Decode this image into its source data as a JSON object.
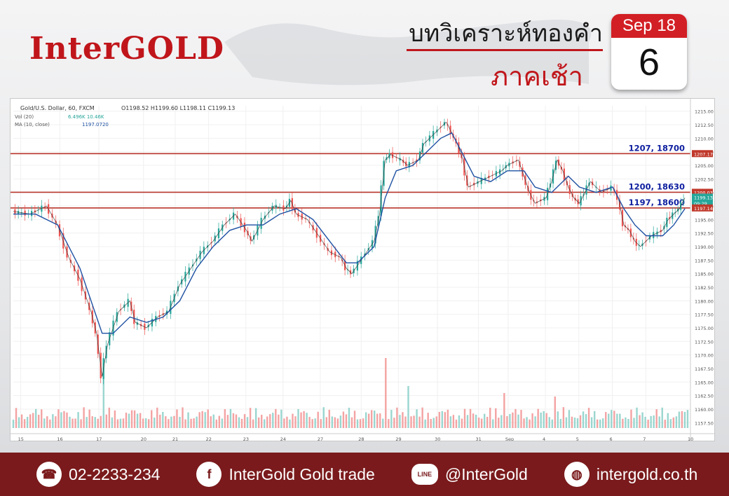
{
  "header": {
    "logo": "InterGOLD",
    "title_main": "บทวิเคราะห์ทองคำ",
    "title_sub": "ภาคเช้า",
    "calendar": {
      "month_year": "Sep 18",
      "day": "6"
    }
  },
  "chart_data": {
    "type": "line",
    "legend_lines": {
      "symbol": "Gold/U.S. Dollar, 60, FXCM",
      "ohlc": "O1198.52  H1199.60  L1198.11  C1199.13",
      "vol": "Vol (20)",
      "vol_values": "6.496K  10.46K",
      "ma": "MA (10, close)",
      "ma_value": "1197.0720"
    },
    "x_ticks": [
      "15",
      "16",
      "17",
      "20",
      "21",
      "22",
      "23",
      "24",
      "27",
      "28",
      "29",
      "30",
      "31",
      "Sep",
      "4",
      "5",
      "6",
      "7",
      "10"
    ],
    "y_ticks": [
      "1215.00",
      "1212.50",
      "1210.00",
      "1207.50",
      "1205.00",
      "1202.50",
      "1200.00",
      "1197.50",
      "1195.00",
      "1192.50",
      "1190.00",
      "1187.50",
      "1185.00",
      "1182.50",
      "1180.00",
      "1177.50",
      "1175.00",
      "1172.50",
      "1170.00",
      "1167.50",
      "1165.00",
      "1162.50",
      "1160.00",
      "1157.50"
    ],
    "ylim": [
      1156.5,
      1216
    ],
    "price_tags": [
      {
        "label": "1207.17",
        "value": 1207.17,
        "color": "#c0392b"
      },
      {
        "label": "1200.03",
        "value": 1200.03,
        "color": "#c0392b"
      },
      {
        "label": "1199.13",
        "value": 1199.13,
        "color": "#26a69a"
      },
      {
        "label": "09:29",
        "value": 1198.0,
        "color": "#26a69a"
      },
      {
        "label": "1197.14",
        "value": 1197.14,
        "color": "#c0392b"
      }
    ],
    "levels": [
      {
        "label": "1207, 18700",
        "value": 1207.17
      },
      {
        "label": "1200, 18630",
        "value": 1200.03
      },
      {
        "label": "1197, 18600",
        "value": 1197.14
      }
    ],
    "price_path": [
      [
        0,
        1196.5
      ],
      [
        3,
        1196
      ],
      [
        6,
        1197.5
      ],
      [
        8,
        1194
      ],
      [
        10,
        1188
      ],
      [
        12,
        1184
      ],
      [
        14,
        1178
      ],
      [
        15,
        1174
      ],
      [
        16,
        1166
      ],
      [
        17,
        1172
      ],
      [
        19,
        1178
      ],
      [
        21,
        1180
      ],
      [
        22,
        1176
      ],
      [
        24,
        1175
      ],
      [
        26,
        1177
      ],
      [
        28,
        1178
      ],
      [
        30,
        1183
      ],
      [
        32,
        1186
      ],
      [
        34,
        1189
      ],
      [
        36,
        1191
      ],
      [
        38,
        1194
      ],
      [
        40,
        1196
      ],
      [
        42,
        1193
      ],
      [
        43,
        1191
      ],
      [
        45,
        1195
      ],
      [
        47,
        1197.5
      ],
      [
        49,
        1197
      ],
      [
        50,
        1198.5
      ],
      [
        51,
        1196
      ],
      [
        53,
        1195
      ],
      [
        55,
        1192
      ],
      [
        57,
        1189
      ],
      [
        59,
        1188
      ],
      [
        60,
        1186
      ],
      [
        61,
        1185
      ],
      [
        63,
        1188
      ],
      [
        65,
        1191
      ],
      [
        66,
        1196
      ],
      [
        67,
        1206
      ],
      [
        68,
        1207
      ],
      [
        70,
        1206
      ],
      [
        71,
        1205
      ],
      [
        73,
        1206
      ],
      [
        74,
        1209
      ],
      [
        76,
        1211
      ],
      [
        78,
        1213
      ],
      [
        79,
        1211
      ],
      [
        80,
        1209
      ],
      [
        81,
        1206
      ],
      [
        82,
        1201
      ],
      [
        84,
        1202
      ],
      [
        86,
        1203
      ],
      [
        88,
        1204
      ],
      [
        89,
        1205
      ],
      [
        91,
        1206
      ],
      [
        92,
        1203
      ],
      [
        93,
        1200
      ],
      [
        94,
        1198
      ],
      [
        96,
        1199
      ],
      [
        97,
        1202
      ],
      [
        98,
        1206
      ],
      [
        99,
        1204
      ],
      [
        100,
        1201
      ],
      [
        101,
        1199
      ],
      [
        102,
        1198
      ],
      [
        103,
        1200
      ],
      [
        104,
        1202
      ],
      [
        106,
        1200
      ],
      [
        108,
        1201
      ],
      [
        109,
        1199
      ],
      [
        110,
        1194
      ],
      [
        111,
        1193
      ],
      [
        112,
        1191
      ],
      [
        113,
        1190
      ],
      [
        115,
        1192
      ],
      [
        117,
        1193
      ],
      [
        118,
        1195
      ],
      [
        119,
        1196
      ],
      [
        120,
        1197
      ],
      [
        121,
        1199
      ]
    ],
    "ma_path": [
      [
        0,
        1196
      ],
      [
        4,
        1196
      ],
      [
        8,
        1194
      ],
      [
        12,
        1186
      ],
      [
        16,
        1174
      ],
      [
        18,
        1174
      ],
      [
        21,
        1177
      ],
      [
        24,
        1176
      ],
      [
        27,
        1177
      ],
      [
        30,
        1180
      ],
      [
        33,
        1186
      ],
      [
        36,
        1190
      ],
      [
        39,
        1193
      ],
      [
        42,
        1194
      ],
      [
        45,
        1194
      ],
      [
        48,
        1196
      ],
      [
        51,
        1197
      ],
      [
        54,
        1195
      ],
      [
        57,
        1191
      ],
      [
        60,
        1187
      ],
      [
        62,
        1187
      ],
      [
        65,
        1190
      ],
      [
        67,
        1199
      ],
      [
        69,
        1204
      ],
      [
        72,
        1205
      ],
      [
        74,
        1207
      ],
      [
        77,
        1210
      ],
      [
        79,
        1211
      ],
      [
        81,
        1207
      ],
      [
        83,
        1203
      ],
      [
        86,
        1202
      ],
      [
        89,
        1204
      ],
      [
        92,
        1204
      ],
      [
        94,
        1201
      ],
      [
        97,
        1200
      ],
      [
        100,
        1203
      ],
      [
        102,
        1201
      ],
      [
        105,
        1200
      ],
      [
        108,
        1201
      ],
      [
        110,
        1197
      ],
      [
        112,
        1194
      ],
      [
        114,
        1192
      ],
      [
        117,
        1192
      ],
      [
        119,
        1194
      ],
      [
        121,
        1197
      ]
    ],
    "volume_spikes": [
      [
        16,
        1.0
      ],
      [
        67,
        1.0
      ],
      [
        88,
        0.5
      ],
      [
        98,
        0.45
      ],
      [
        71,
        0.6
      ]
    ],
    "colors": {
      "up": "#26a69a",
      "down": "#ef5350",
      "ma": "#1e50a2",
      "level": "#b8362b",
      "level_label": "#1020a0"
    }
  },
  "footer": {
    "phone": "02-2233-234",
    "facebook": "InterGold Gold trade",
    "line": "@InterGold",
    "line_badge": "LINE",
    "web": "intergold.co.th",
    "phone_icon": "☎",
    "facebook_icon": "f",
    "web_icon": "◍"
  }
}
